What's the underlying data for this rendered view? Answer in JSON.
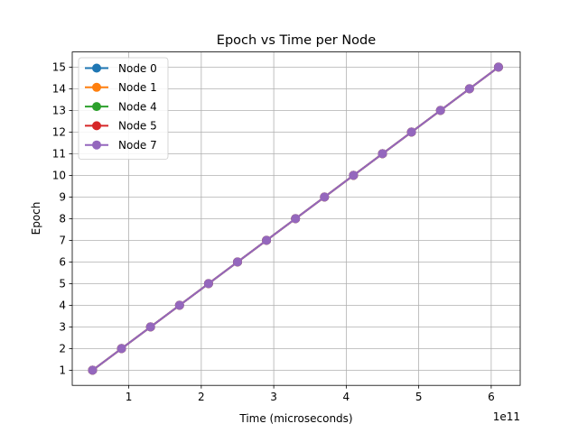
{
  "chart_data": {
    "type": "line",
    "title": "Epoch vs Time per Node",
    "xlabel": "Time (microseconds)",
    "ylabel": "Epoch",
    "x_offset_label": "1e11",
    "x_scale": 100000000000.0,
    "xlim": [
      22000000000.0,
      640000000000.0
    ],
    "ylim": [
      0.3,
      15.7
    ],
    "x_ticks": [
      100000000000.0,
      200000000000.0,
      300000000000.0,
      400000000000.0,
      500000000000.0,
      600000000000.0
    ],
    "x_tick_labels": [
      "1",
      "2",
      "3",
      "4",
      "5",
      "6"
    ],
    "y_ticks": [
      1,
      2,
      3,
      4,
      5,
      6,
      7,
      8,
      9,
      10,
      11,
      12,
      13,
      14,
      15
    ],
    "y_tick_labels": [
      "1",
      "2",
      "3",
      "4",
      "5",
      "6",
      "7",
      "8",
      "9",
      "10",
      "11",
      "12",
      "13",
      "14",
      "15"
    ],
    "grid": true,
    "legend_position": "top-left",
    "x": [
      50000000000.0,
      90000000000.0,
      130000000000.0,
      170000000000.0,
      210000000000.0,
      250000000000.0,
      290000000000.0,
      330000000000.0,
      370000000000.0,
      410000000000.0,
      450000000000.0,
      490000000000.0,
      530000000000.0,
      570000000000.0,
      610000000000.0
    ],
    "series": [
      {
        "name": "Node 0",
        "color": "#1f77b4",
        "values": [
          1,
          2,
          3,
          4,
          5,
          6,
          7,
          8,
          9,
          10,
          11,
          12,
          13,
          14,
          15
        ]
      },
      {
        "name": "Node 1",
        "color": "#ff7f0e",
        "values": [
          1,
          2,
          3,
          4,
          5,
          6,
          7,
          8,
          9,
          10,
          11,
          12,
          13,
          14,
          15
        ]
      },
      {
        "name": "Node 4",
        "color": "#2ca02c",
        "values": [
          1,
          2,
          3,
          4,
          5,
          6,
          7,
          8,
          9,
          10,
          11,
          12,
          13,
          14,
          15
        ]
      },
      {
        "name": "Node 5",
        "color": "#d62728",
        "values": [
          1,
          2,
          3,
          4,
          5,
          6,
          7,
          8,
          9,
          10,
          11,
          12,
          13,
          14,
          15
        ]
      },
      {
        "name": "Node 7",
        "color": "#9467bd",
        "values": [
          1,
          2,
          3,
          4,
          5,
          6,
          7,
          8,
          9,
          10,
          11,
          12,
          13,
          14,
          15
        ]
      }
    ]
  }
}
